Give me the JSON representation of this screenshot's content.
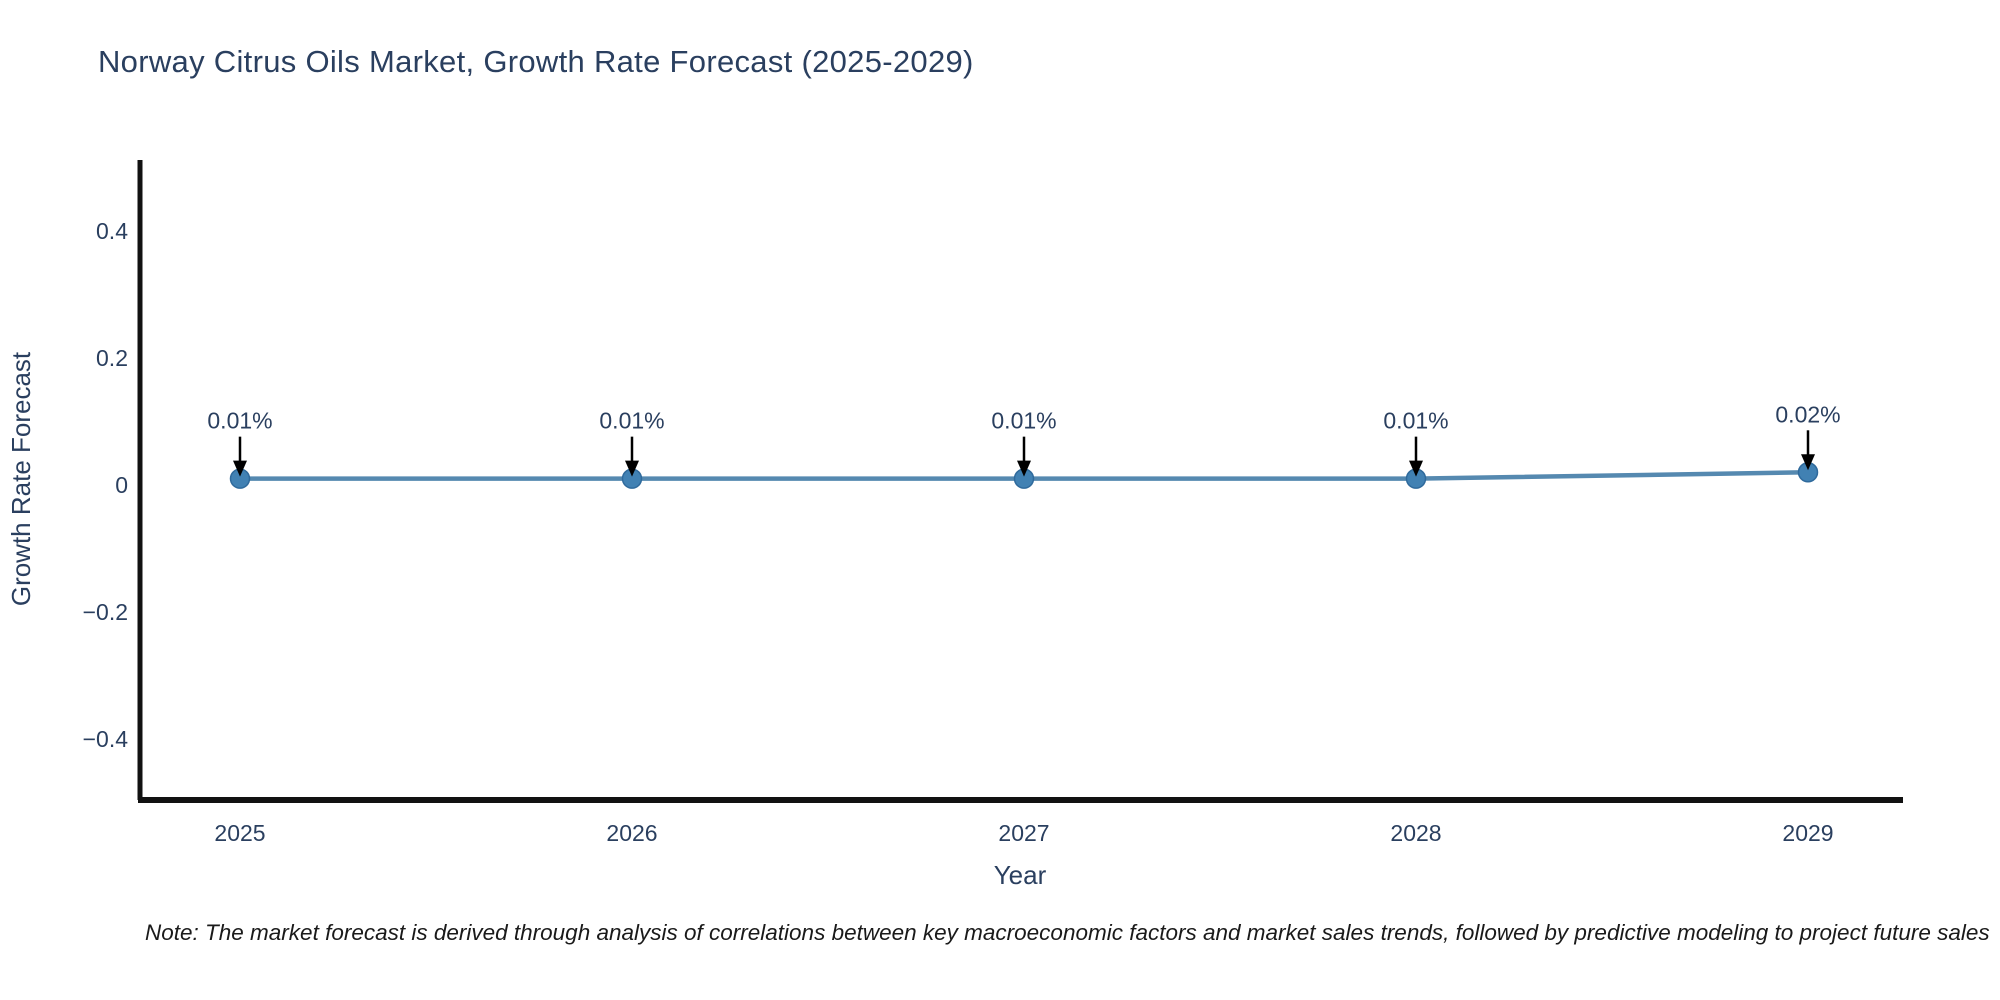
{
  "page": {
    "background": "#ffffff"
  },
  "title": "Norway Citrus Oils Market, Growth Rate Forecast (2025-2029)",
  "note": "Note: The market forecast is derived through analysis of correlations between key macroeconomic factors and market sales trends, followed by predictive modeling to project future sales",
  "chart_data": {
    "type": "line",
    "title": "Norway Citrus Oils Market, Growth Rate Forecast (2025-2029)",
    "xlabel": "Year",
    "ylabel": "Growth Rate Forecast",
    "x": [
      2025,
      2026,
      2027,
      2028,
      2029
    ],
    "values": [
      0.01,
      0.01,
      0.01,
      0.01,
      0.02
    ],
    "point_labels": [
      "0.01%",
      "0.01%",
      "0.01%",
      "0.01%",
      "0.02%"
    ],
    "ylim": [
      -0.5,
      0.52
    ],
    "yticks": [
      0.4,
      0.2,
      0,
      -0.2,
      -0.4
    ],
    "ytick_labels": [
      "0.4",
      "0.2",
      "0",
      "−0.2",
      "−0.4"
    ],
    "grid": false,
    "legend_position": "none",
    "markers": true,
    "annotations": "value labels with down arrows above each point",
    "colors": {
      "line": "#5589b0",
      "marker": "#4181b3",
      "marker_edge": "#2f6a9c",
      "arrow": "#000000",
      "axis": "#111111",
      "text": "#2a3f5f"
    }
  }
}
